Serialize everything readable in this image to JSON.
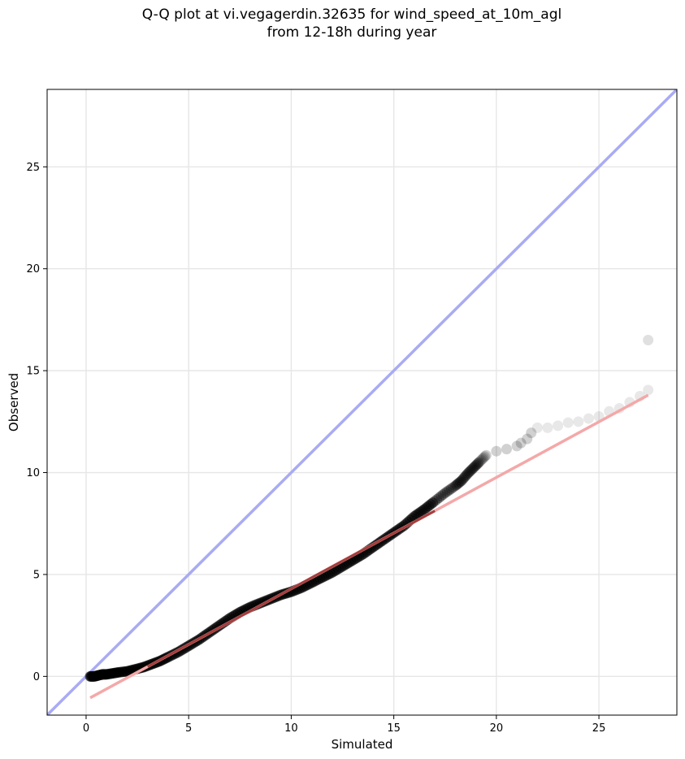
{
  "chart_data": {
    "type": "scatter",
    "title": "Q-Q plot at vi.vegagerdin.32635 for wind_speed_at_10m_agl\nfrom 12-18h during year",
    "xlabel": "Simulated",
    "ylabel": "Observed",
    "xlim": [
      -1.9,
      28.8
    ],
    "ylim": [
      -1.9,
      28.8
    ],
    "xticks": [
      0,
      5,
      10,
      15,
      20,
      25
    ],
    "yticks": [
      0,
      5,
      10,
      15,
      20,
      25
    ],
    "grid": true,
    "colors": {
      "points": "#000000",
      "identity_line": "#a9abf3",
      "fit_line_outside": "#f4a8a8",
      "fit_line_inside": "#8b1a1a",
      "grid": "#e6e6e6"
    },
    "identity_line": {
      "x": [
        -1.9,
        28.8
      ],
      "y": [
        -1.9,
        28.8
      ]
    },
    "fit_line": {
      "x": [
        0.2,
        27.4
      ],
      "y": [
        -1.05,
        13.8
      ]
    },
    "series": [
      {
        "points": {
          "x": [
            0.2,
            0.4,
            0.6,
            0.8,
            1.0,
            1.3,
            1.6,
            2.0,
            2.4,
            2.8,
            3.2,
            3.6,
            4.0,
            4.5,
            5.0,
            5.5,
            6.0,
            6.5,
            7.0,
            7.5,
            8.0,
            8.5,
            9.0,
            9.5,
            10.0,
            10.5,
            11.0,
            11.5,
            12.0,
            12.5,
            13.0,
            13.5,
            14.0,
            14.5,
            15.0,
            15.5,
            16.0,
            16.5,
            17.0,
            17.5,
            18.0,
            18.3,
            18.6,
            18.9,
            19.2,
            19.5,
            20.0,
            20.5,
            21.0,
            21.2,
            21.5,
            21.7,
            22.0,
            22.5,
            23.0,
            23.5,
            24.0,
            24.5,
            25.0,
            25.5,
            26.0,
            26.5,
            27.0,
            27.4,
            27.4
          ],
          "y": [
            0.0,
            0.0,
            0.05,
            0.1,
            0.1,
            0.15,
            0.2,
            0.25,
            0.35,
            0.45,
            0.6,
            0.75,
            0.95,
            1.2,
            1.5,
            1.8,
            2.15,
            2.5,
            2.85,
            3.15,
            3.4,
            3.6,
            3.8,
            4.0,
            4.15,
            4.35,
            4.6,
            4.85,
            5.1,
            5.4,
            5.7,
            6.0,
            6.35,
            6.7,
            7.05,
            7.4,
            7.85,
            8.2,
            8.6,
            9.0,
            9.35,
            9.6,
            9.95,
            10.25,
            10.55,
            10.85,
            11.05,
            11.15,
            11.3,
            11.45,
            11.65,
            11.95,
            12.2,
            12.2,
            12.3,
            12.45,
            12.5,
            12.65,
            12.75,
            13.0,
            13.15,
            13.45,
            13.75,
            14.05,
            16.5
          ]
        }
      }
    ]
  }
}
